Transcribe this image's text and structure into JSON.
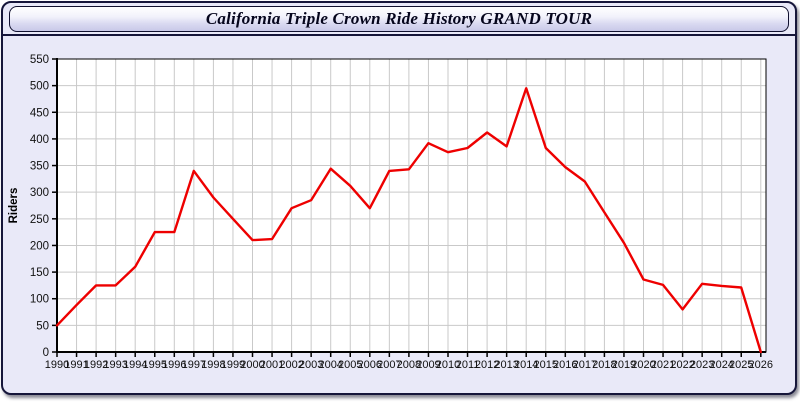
{
  "window": {
    "title": "California Triple Crown Ride History GRAND TOUR"
  },
  "colors": {
    "panel_bg": "#e9e9f8",
    "plot_bg": "#ffffff",
    "grid": "#c9c9c9",
    "axis": "#000000",
    "tick_label": "#111111",
    "line": "#ee0000"
  },
  "chart_data": {
    "type": "line",
    "title": "California Triple Crown Ride History GRAND TOUR",
    "xlabel": "",
    "ylabel": "Riders",
    "x": [
      1990,
      1991,
      1992,
      1993,
      1994,
      1995,
      1996,
      1997,
      1998,
      1999,
      2000,
      2001,
      2002,
      2003,
      2004,
      2005,
      2006,
      2007,
      2008,
      2009,
      2010,
      2011,
      2012,
      2013,
      2014,
      2015,
      2016,
      2017,
      2018,
      2019,
      2020,
      2021,
      2022,
      2023,
      2024,
      2025,
      2026
    ],
    "series": [
      {
        "name": "Riders",
        "color": "#ee0000",
        "values": [
          50,
          88,
          125,
          125,
          160,
          225,
          225,
          340,
          290,
          250,
          210,
          212,
          270,
          285,
          344,
          312,
          270,
          340,
          343,
          392,
          375,
          383,
          412,
          386,
          495,
          383,
          347,
          320,
          262,
          205,
          136,
          126,
          80,
          128,
          124,
          121,
          0
        ]
      }
    ],
    "ylim": [
      0,
      550
    ],
    "ytick_step": 50,
    "grid": true,
    "legend": "none"
  }
}
